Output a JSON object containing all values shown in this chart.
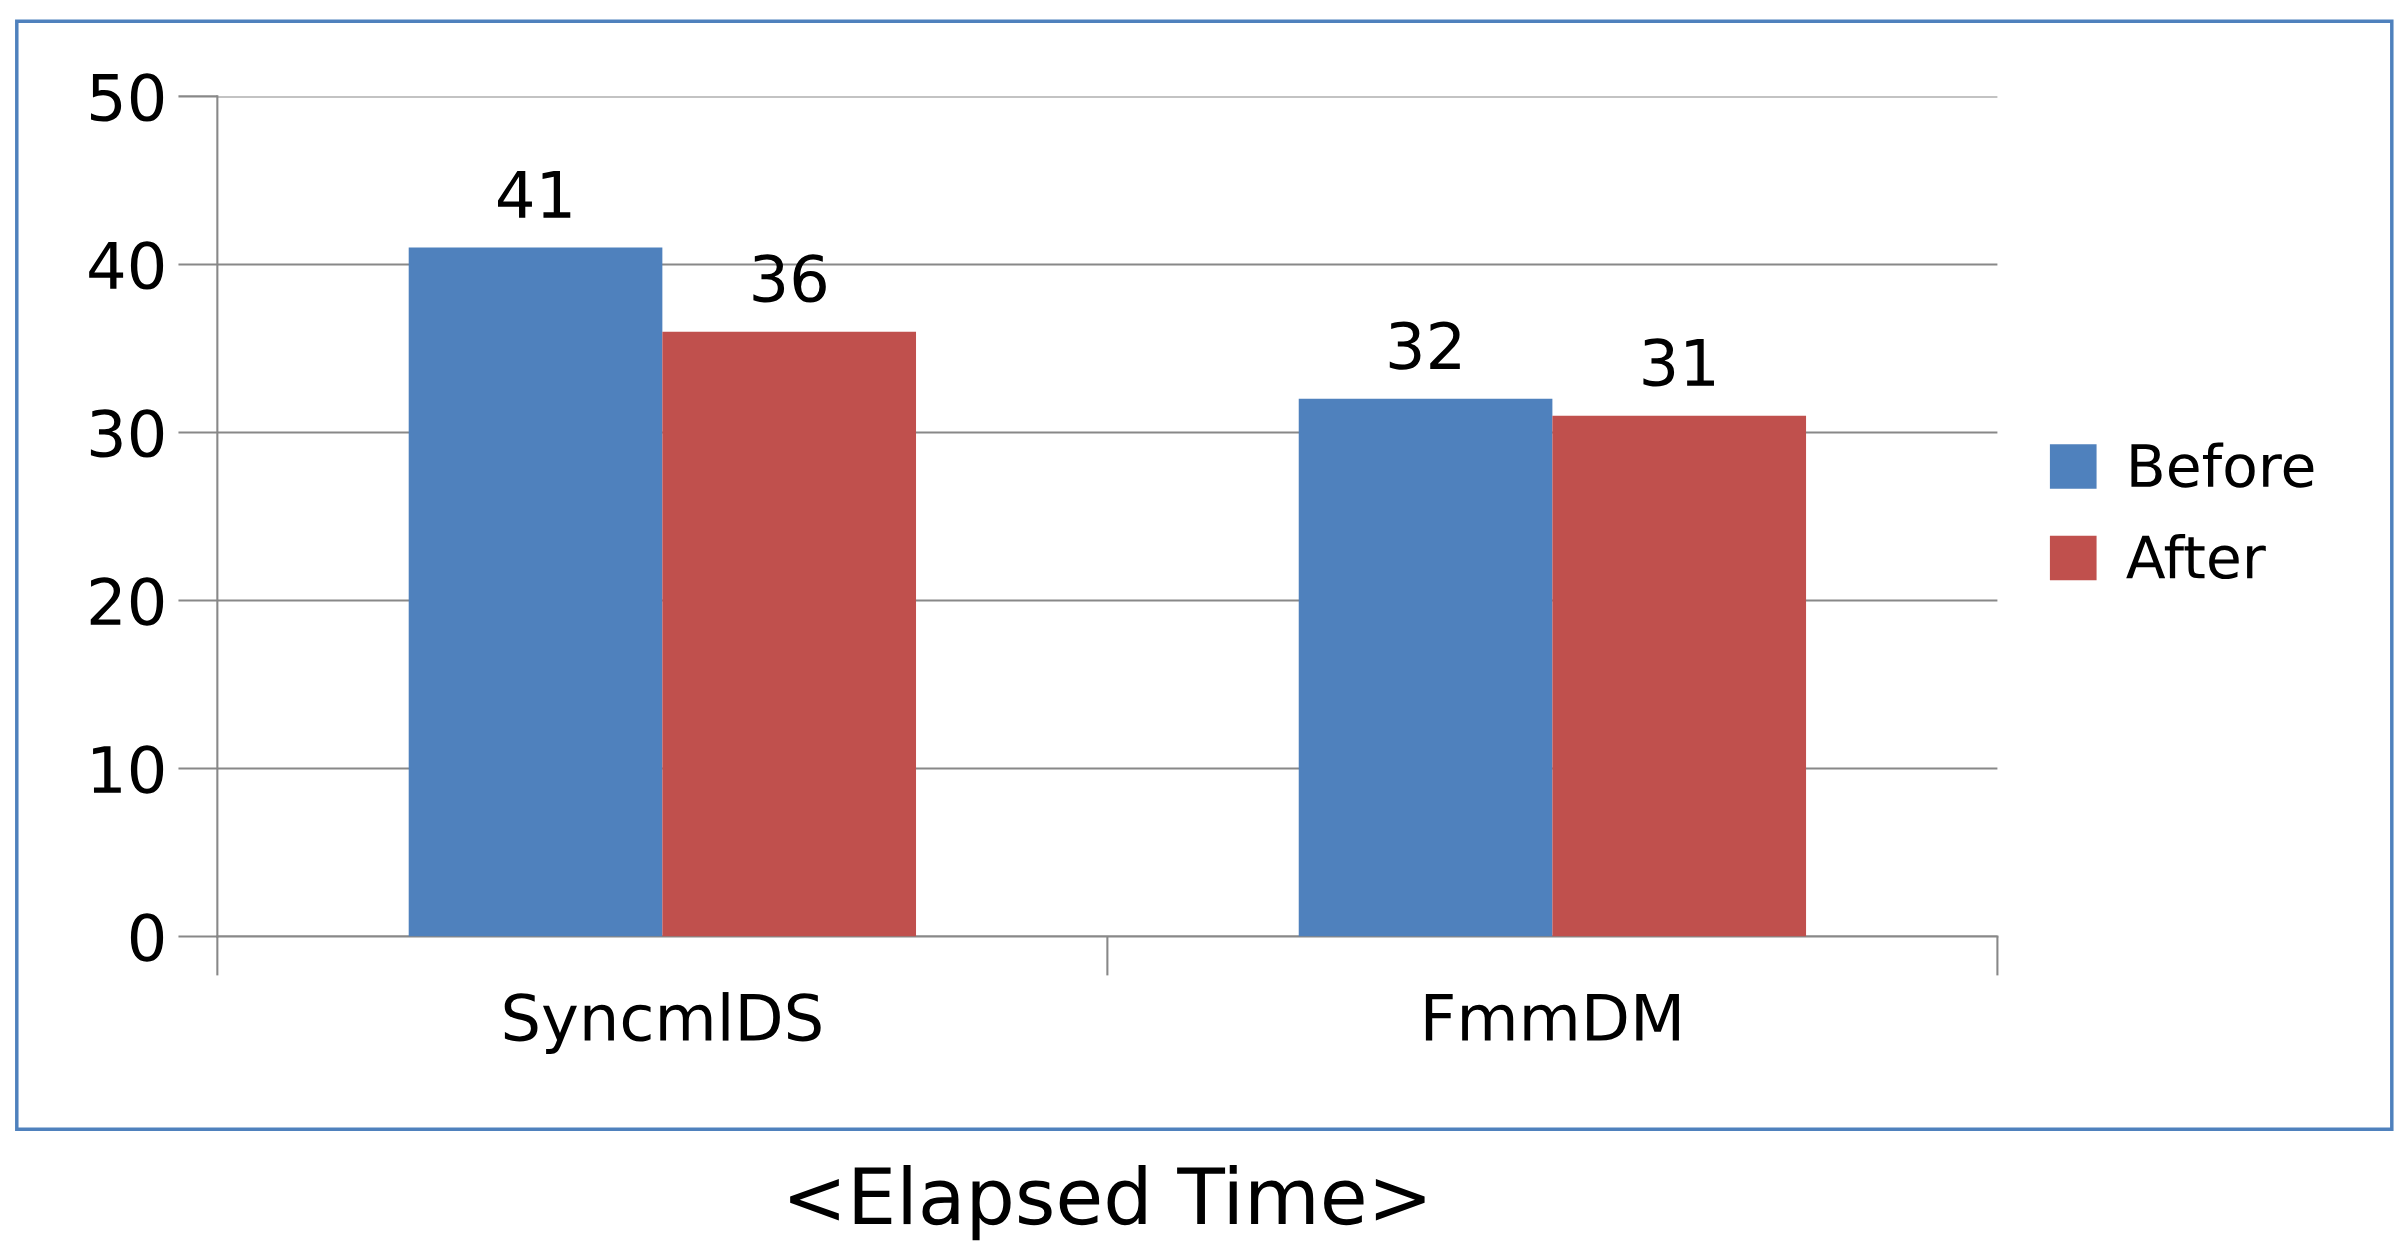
{
  "chart_data": {
    "type": "bar",
    "xlabel": "<Elapsed Time>",
    "categories": [
      "SyncmlDS",
      "FmmDM"
    ],
    "series": [
      {
        "name": "Before",
        "color": "#4f81bd",
        "values": [
          41,
          32
        ]
      },
      {
        "name": "After",
        "color": "#c0504d",
        "values": [
          36,
          31
        ]
      }
    ],
    "ylim": [
      0,
      50
    ],
    "yticks": [
      0,
      10,
      20,
      30,
      40,
      50
    ],
    "grid": "y",
    "legend": "right",
    "data_labels": true
  }
}
